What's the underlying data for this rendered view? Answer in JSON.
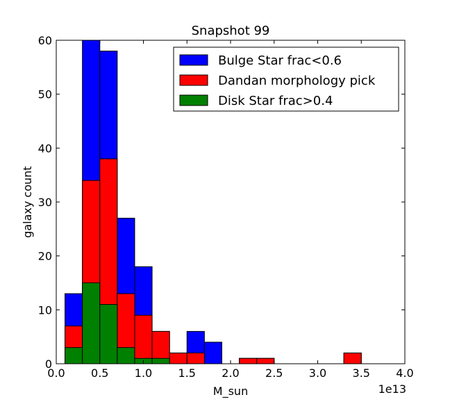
{
  "chart_data": {
    "type": "bar",
    "title": "Snapshot 99",
    "xlabel": "M_sun",
    "ylabel": "galaxy count",
    "x_offset_label": "1e13",
    "xlim": [
      0.0,
      4.0
    ],
    "ylim": [
      0,
      60
    ],
    "x_ticks": [
      "0.0",
      "0.5",
      "1.0",
      "1.5",
      "2.0",
      "2.5",
      "3.0",
      "3.5",
      "4.0"
    ],
    "y_ticks": [
      "0",
      "10",
      "20",
      "30",
      "40",
      "50",
      "60"
    ],
    "bin_edges": [
      0.1,
      0.3,
      0.5,
      0.7,
      0.9,
      1.1,
      1.3,
      1.5,
      1.7,
      1.9,
      2.1,
      2.3,
      2.5,
      2.7,
      2.9,
      3.1,
      3.3,
      3.5,
      3.7,
      3.9
    ],
    "legend_position": "top-right",
    "grid": false,
    "series": [
      {
        "name": "Bulge Star frac<0.6",
        "color": "#0000ff",
        "values": [
          13,
          60,
          58,
          27,
          18,
          6,
          2,
          6,
          4,
          0,
          1,
          1,
          0,
          0,
          0,
          0,
          2,
          0,
          0
        ]
      },
      {
        "name": "Dandan morphology pick",
        "color": "#ff0000",
        "values": [
          7,
          34,
          38,
          13,
          9,
          6,
          2,
          2,
          0,
          0,
          1,
          1,
          0,
          0,
          0,
          0,
          2,
          0,
          0
        ]
      },
      {
        "name": "Disk Star frac>0.4",
        "color": "#008000",
        "values": [
          3,
          15,
          11,
          3,
          1,
          1,
          0,
          0,
          0,
          0,
          0,
          0,
          0,
          0,
          0,
          0,
          0,
          0,
          0
        ]
      }
    ]
  }
}
